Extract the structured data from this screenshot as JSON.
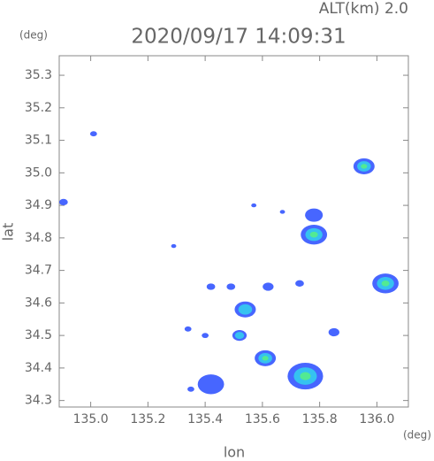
{
  "chart_data": {
    "type": "scatter",
    "altitude_label": "ALT(km) 2.0",
    "title": "2020/09/17 14:09:31",
    "y_unit": "(deg)",
    "x_unit": "(deg)",
    "ylabel": "lat",
    "xlabel": "lon",
    "xlim": [
      134.89,
      136.11
    ],
    "ylim": [
      34.28,
      35.36
    ],
    "xticks": [
      {
        "value": 135,
        "label": "135.0"
      },
      135.2,
      135.4,
      135.6,
      135.8,
      {
        "value": 136,
        "label": "136.0"
      }
    ],
    "yticks": [
      34.3,
      34.4,
      34.5,
      34.6,
      34.7,
      34.8,
      34.9,
      {
        "value": 35,
        "label": "35.0"
      },
      35.1,
      35.2,
      35.3
    ],
    "x": [
      135.01,
      134.905,
      135.955,
      135.78,
      135.78,
      136.03,
      135.61,
      135.75,
      135.54,
      135.52,
      135.42,
      135.35,
      135.85,
      135.73,
      135.62,
      135.42,
      135.4,
      135.34,
      135.57,
      135.67,
      135.29,
      135.49
    ],
    "y": [
      35.12,
      34.91,
      35.02,
      34.87,
      34.81,
      34.66,
      34.43,
      34.375,
      34.58,
      34.5,
      34.35,
      34.335,
      34.51,
      34.66,
      34.65,
      34.65,
      34.5,
      34.52,
      34.9,
      34.88,
      34.775,
      34.65
    ],
    "sizes": [
      0.012,
      0.015,
      0.037,
      0.031,
      0.046,
      0.046,
      0.037,
      0.062,
      0.037,
      0.025,
      0.046,
      0.012,
      0.019,
      0.015,
      0.019,
      0.015,
      0.012,
      0.012,
      0.009,
      0.009,
      0.009,
      0.015
    ],
    "intensity": [
      1,
      1,
      3,
      1,
      3,
      3,
      3,
      3,
      2,
      2,
      1,
      1,
      1,
      1,
      1,
      1,
      1,
      1,
      1,
      1,
      1,
      1
    ],
    "colors": [
      "#3355ff",
      "#33ccee",
      "#55ee88"
    ]
  }
}
